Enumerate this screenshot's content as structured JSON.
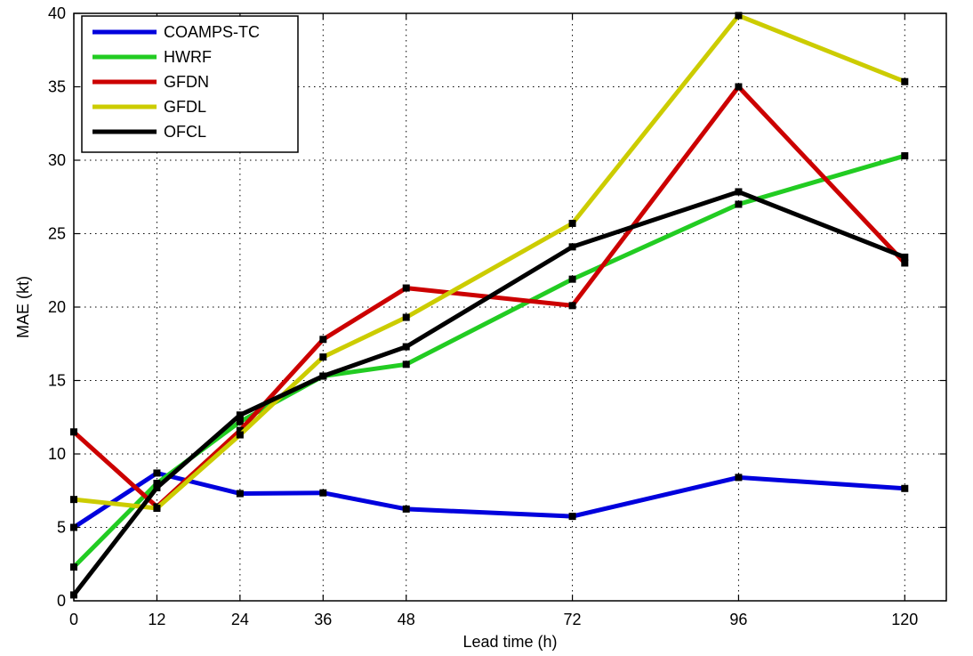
{
  "chart_data": {
    "type": "line",
    "title": "",
    "xlabel": "Lead time (h)",
    "ylabel": "MAE (kt)",
    "x": [
      0,
      12,
      24,
      36,
      48,
      72,
      96,
      120
    ],
    "xticks": [
      "0",
      "12",
      "24",
      "36",
      "48",
      "72",
      "96",
      "120"
    ],
    "ylim": [
      0,
      40
    ],
    "yticks": [
      "0",
      "5",
      "10",
      "15",
      "20",
      "25",
      "30",
      "35",
      "40"
    ],
    "grid": true,
    "legend_position": "top-left",
    "series": [
      {
        "name": "COAMPS-TC",
        "color": "#0000dd",
        "values": [
          5.0,
          8.7,
          7.3,
          7.35,
          6.25,
          5.75,
          8.4,
          7.65
        ]
      },
      {
        "name": "HWRF",
        "color": "#22cc22",
        "values": [
          2.3,
          8.0,
          12.2,
          15.3,
          16.1,
          21.9,
          27.0,
          30.3
        ]
      },
      {
        "name": "GFDN",
        "color": "#cc0000",
        "values": [
          11.5,
          6.4,
          11.6,
          17.8,
          21.3,
          20.1,
          35.0,
          23.0
        ]
      },
      {
        "name": "GFDL",
        "color": "#cccc00",
        "values": [
          6.9,
          6.3,
          11.3,
          16.6,
          19.3,
          25.7,
          39.85,
          35.35
        ]
      },
      {
        "name": "OFCL",
        "color": "#000000",
        "values": [
          0.4,
          7.7,
          12.65,
          15.3,
          17.3,
          24.1,
          27.85,
          23.4
        ]
      }
    ]
  }
}
